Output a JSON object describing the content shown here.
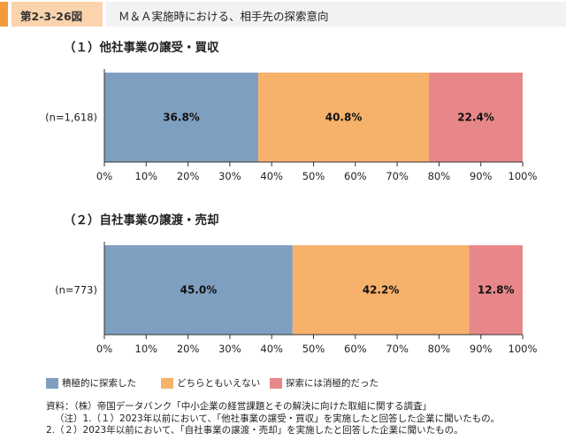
{
  "figure_id": "第2-3-26図",
  "figure_title": "Ｍ＆Ａ実施時における、相手先の探索意向",
  "colors": {
    "header_accent": "#f39a3d",
    "header_id_bg": "#fbd3ad",
    "header_title_bg": "#f2f2f2",
    "series": [
      "#7f9fc0",
      "#f6b26b",
      "#e8878a"
    ]
  },
  "chart_data": [
    {
      "type": "bar",
      "orientation": "horizontal",
      "stacked": true,
      "title": "（１）他社事業の譲受・買収",
      "categories": [
        "(n=1,618)"
      ],
      "series": [
        {
          "name": "積極的に探索した",
          "values": [
            36.8
          ],
          "label": "36.8%"
        },
        {
          "name": "どちらともいえない",
          "values": [
            40.8
          ],
          "label": "40.8%"
        },
        {
          "name": "探索には消極的だった",
          "values": [
            22.4
          ],
          "label": "22.4%"
        }
      ],
      "xlim": [
        0,
        100
      ],
      "xticks": [
        "0%",
        "10%",
        "20%",
        "30%",
        "40%",
        "50%",
        "60%",
        "70%",
        "80%",
        "90%",
        "100%"
      ],
      "grid": false
    },
    {
      "type": "bar",
      "orientation": "horizontal",
      "stacked": true,
      "title": "（２）自社事業の譲渡・売却",
      "categories": [
        "(n=773)"
      ],
      "series": [
        {
          "name": "積極的に探索した",
          "values": [
            45.0
          ],
          "label": "45.0%"
        },
        {
          "name": "どちらともいえない",
          "values": [
            42.2
          ],
          "label": "42.2%"
        },
        {
          "name": "探索には消極的だった",
          "values": [
            12.8
          ],
          "label": "12.8%"
        }
      ],
      "xlim": [
        0,
        100
      ],
      "xticks": [
        "0%",
        "10%",
        "20%",
        "30%",
        "40%",
        "50%",
        "60%",
        "70%",
        "80%",
        "90%",
        "100%"
      ],
      "grid": false
    }
  ],
  "legend": {
    "placement": "bottom",
    "items": [
      "積極的に探索した",
      "どちらともいえない",
      "探索には消極的だった"
    ]
  },
  "notes": [
    "資料：（株）帝国データバンク「中小企業の経営課題とその解決に向けた取組に関する調査」",
    "（注）1.（１）2023年以前において、「他社事業の譲受・買収」を実施したと回答した企業に聞いたもの。",
    "2.（２）2023年以前において、「自社事業の譲渡・売却」を実施したと回答した企業に聞いたもの。"
  ]
}
